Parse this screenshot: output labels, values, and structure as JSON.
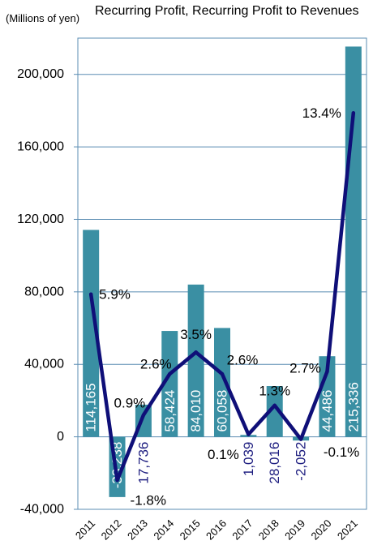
{
  "chart_data": {
    "type": "bar",
    "title": "Recurring Profit, Recurring Profit to Revenues",
    "unit_label": "(Millions of yen)",
    "categories": [
      "2011",
      "2012",
      "2013",
      "2014",
      "2015",
      "2016",
      "2017",
      "2018",
      "2019",
      "2020",
      "2021"
    ],
    "ylim": [
      -40000,
      220000
    ],
    "y2lim": [
      -3,
      16.5
    ],
    "yticks": [
      -40000,
      0,
      40000,
      80000,
      120000,
      160000,
      200000
    ],
    "ytick_labels": [
      "-40,000",
      "0",
      "40,000",
      "80,000",
      "120,000",
      "160,000",
      "200,000"
    ],
    "grid": true,
    "grid_color": "#5b8db3",
    "series": [
      {
        "type": "bar",
        "values": [
          114165,
          -33238,
          17736,
          58424,
          84010,
          60058,
          1039,
          28016,
          -2052,
          44486,
          215336
        ],
        "data_labels": [
          "114,165",
          "-33,238",
          "17,736",
          "58,424",
          "84,010",
          "60,058",
          "1,039",
          "28,016",
          "-2,052",
          "44,486",
          "215,336"
        ],
        "color": "#3a8fa3",
        "label_colors": [
          "#ffffff",
          "#ffffff",
          "#1e1e80",
          "#ffffff",
          "#ffffff",
          "#ffffff",
          "#1e1e80",
          "#1e1e80",
          "#1e1e80",
          "#ffffff",
          "#ffffff"
        ]
      },
      {
        "type": "line",
        "values": [
          5.9,
          -1.8,
          0.9,
          2.6,
          3.5,
          2.6,
          0.1,
          1.3,
          -0.1,
          2.7,
          13.4
        ],
        "data_labels": [
          "5.9%",
          "-1.8%",
          "0.9%",
          "2.6%",
          "3.5%",
          "2.6%",
          "0.1%",
          "1.3%",
          "-0.1%",
          "2.7%",
          "13.4%"
        ],
        "color": "#0f0f78"
      }
    ]
  }
}
